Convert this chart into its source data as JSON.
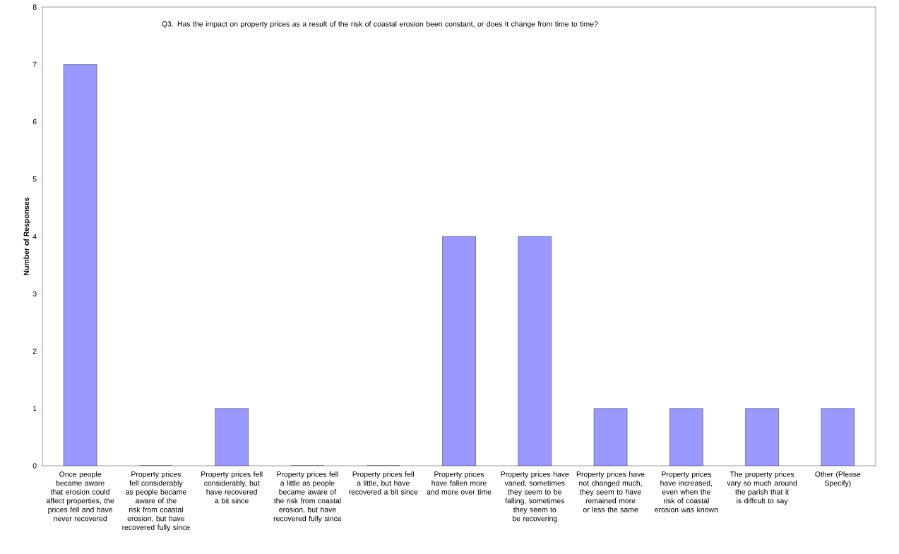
{
  "chart_data": {
    "type": "bar",
    "title": "Q3.  Has the impact on property prices as a result of the risk of coastal erosion been constant, or does it change from time to time?",
    "ylabel": "Number of Responses",
    "categories": [
      "Once people became aware that erosion could affect properties, the prices fell and have never recovered",
      "Property prices fell considerably as people became aware of the risk from coastal erosion, but have recovered fully since",
      "Property prices fell considerably, but have recovered a bit since",
      "Property prices fell a little as people became aware of the risk from coastal erosion, but have recovered fully since",
      "Property prices fell a little, but have recovered a bit since",
      "Property prices have fallen more and more over time",
      "Property prices have varied, sometimes they seem to be falling, sometimes they seem to be recovering",
      "Property prices have not changed much, they seem to have remained more or less the same",
      "Property prices have increased, even when the risk of coastal erosion was known",
      "The property prices vary so much around the parish that it is diffcult to say",
      "Other (Please Specify)"
    ],
    "values": [
      7,
      0,
      1,
      0,
      0,
      4,
      4,
      1,
      1,
      1,
      1
    ],
    "color": "#9999ff",
    "ylim": [
      0,
      8
    ],
    "yticks": [
      0,
      1,
      2,
      3,
      4,
      5,
      6,
      7,
      8
    ]
  }
}
